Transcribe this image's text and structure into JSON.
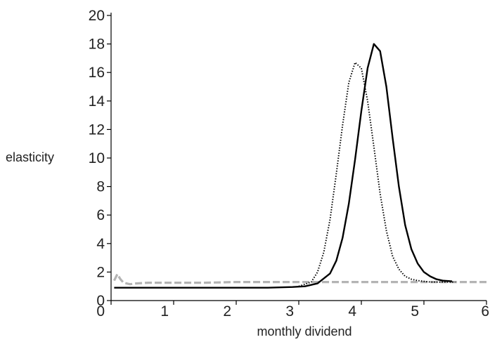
{
  "chart_data": {
    "type": "line",
    "title": "",
    "xlabel": "monthly dividend",
    "ylabel": "elasticity",
    "xlim": [
      0,
      6
    ],
    "ylim": [
      0,
      20
    ],
    "xticks": [
      0,
      1,
      2,
      3,
      4,
      5,
      6
    ],
    "yticks": [
      0,
      2,
      4,
      6,
      8,
      10,
      12,
      14,
      16,
      18,
      20
    ],
    "xtick_labels": [
      "0",
      "1",
      "2",
      "3",
      "4",
      "5",
      "6"
    ],
    "ytick_labels": [
      "0",
      "2",
      "4",
      "6",
      "8",
      "10",
      "12",
      "14",
      "16",
      "18",
      "20"
    ],
    "grid": false,
    "legend": "none",
    "series": [
      {
        "style": "solid",
        "color": "#000000",
        "x": [
          0.05,
          0.5,
          1.0,
          1.5,
          2.0,
          2.5,
          2.9,
          3.1,
          3.3,
          3.5,
          3.6,
          3.7,
          3.8,
          3.9,
          4.0,
          4.1,
          4.2,
          4.3,
          4.4,
          4.5,
          4.6,
          4.7,
          4.8,
          4.9,
          5.0,
          5.1,
          5.2,
          5.3,
          5.45
        ],
        "y": [
          0.9,
          0.9,
          0.9,
          0.9,
          0.9,
          0.9,
          0.95,
          1.0,
          1.2,
          1.9,
          2.8,
          4.4,
          6.8,
          9.9,
          13.3,
          16.3,
          18.0,
          17.5,
          15.0,
          11.4,
          8.0,
          5.3,
          3.6,
          2.6,
          2.0,
          1.7,
          1.5,
          1.4,
          1.35
        ]
      },
      {
        "style": "dotted",
        "color": "#000000",
        "x": [
          3.0,
          3.2,
          3.3,
          3.4,
          3.5,
          3.6,
          3.7,
          3.8,
          3.9,
          4.0,
          4.1,
          4.2,
          4.3,
          4.4,
          4.5,
          4.6,
          4.7,
          4.8,
          4.9,
          5.0,
          5.1,
          5.3,
          5.5
        ],
        "y": [
          1.0,
          1.3,
          2.0,
          3.4,
          5.7,
          8.9,
          12.3,
          15.3,
          16.7,
          16.3,
          14.0,
          10.8,
          7.5,
          4.9,
          3.1,
          2.2,
          1.7,
          1.5,
          1.4,
          1.35,
          1.3,
          1.3,
          1.3
        ]
      },
      {
        "style": "dashed",
        "color": "#b4b4b4",
        "x": [
          0.05,
          0.1,
          0.15,
          0.2,
          0.3,
          0.4,
          0.6,
          1.0,
          1.5,
          2.0,
          2.5,
          3.0,
          3.5,
          4.0,
          4.5,
          5.0,
          5.5,
          6.0
        ],
        "y": [
          1.4,
          1.85,
          1.5,
          1.25,
          1.15,
          1.2,
          1.25,
          1.25,
          1.25,
          1.3,
          1.3,
          1.3,
          1.3,
          1.3,
          1.3,
          1.3,
          1.3,
          1.3
        ]
      }
    ]
  }
}
